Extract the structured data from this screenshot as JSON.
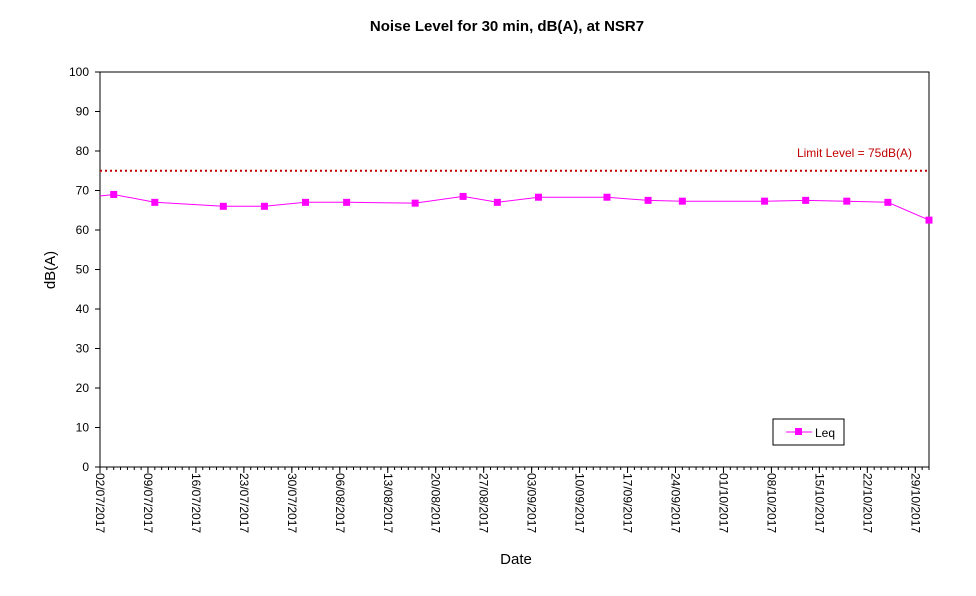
{
  "chart_data": {
    "type": "line",
    "title": "Noise Level for 30 min, dB(A), at NSR7",
    "xlabel": "Date",
    "ylabel": "dB(A)",
    "ylim": [
      0,
      100
    ],
    "yticks": [
      0,
      10,
      20,
      30,
      40,
      50,
      60,
      70,
      80,
      90,
      100
    ],
    "xlim": [
      "2017-07-02",
      "2017-10-31"
    ],
    "xtick_labels": [
      "02/07/2017",
      "09/07/2017",
      "16/07/2017",
      "23/07/2017",
      "30/07/2017",
      "06/08/2017",
      "13/08/2017",
      "20/08/2017",
      "27/08/2017",
      "03/09/2017",
      "10/09/2017",
      "17/09/2017",
      "24/09/2017",
      "01/10/2017",
      "08/10/2017",
      "15/10/2017",
      "22/10/2017",
      "29/10/2017"
    ],
    "grid": false,
    "legend": {
      "position": "bottom-right",
      "entries": [
        "Leq"
      ]
    },
    "series": [
      {
        "name": "Leq",
        "color": "#ff00ff",
        "marker": "square",
        "x": [
          "2017-07-04",
          "2017-07-10",
          "2017-07-20",
          "2017-07-26",
          "2017-08-01",
          "2017-08-07",
          "2017-08-17",
          "2017-08-24",
          "2017-08-29",
          "2017-09-04",
          "2017-09-14",
          "2017-09-20",
          "2017-09-25",
          "2017-10-07",
          "2017-10-13",
          "2017-10-19",
          "2017-10-25",
          "2017-10-31"
        ],
        "values": [
          69.0,
          67.0,
          66.0,
          66.0,
          67.0,
          67.0,
          66.8,
          68.5,
          67.0,
          68.3,
          68.3,
          67.5,
          67.3,
          67.3,
          67.5,
          67.3,
          67.0,
          62.5
        ]
      }
    ],
    "reference_line": {
      "value": 75,
      "label": "Limit Level = 75dB(A)",
      "color": "#c00000",
      "style": "dotted"
    }
  }
}
